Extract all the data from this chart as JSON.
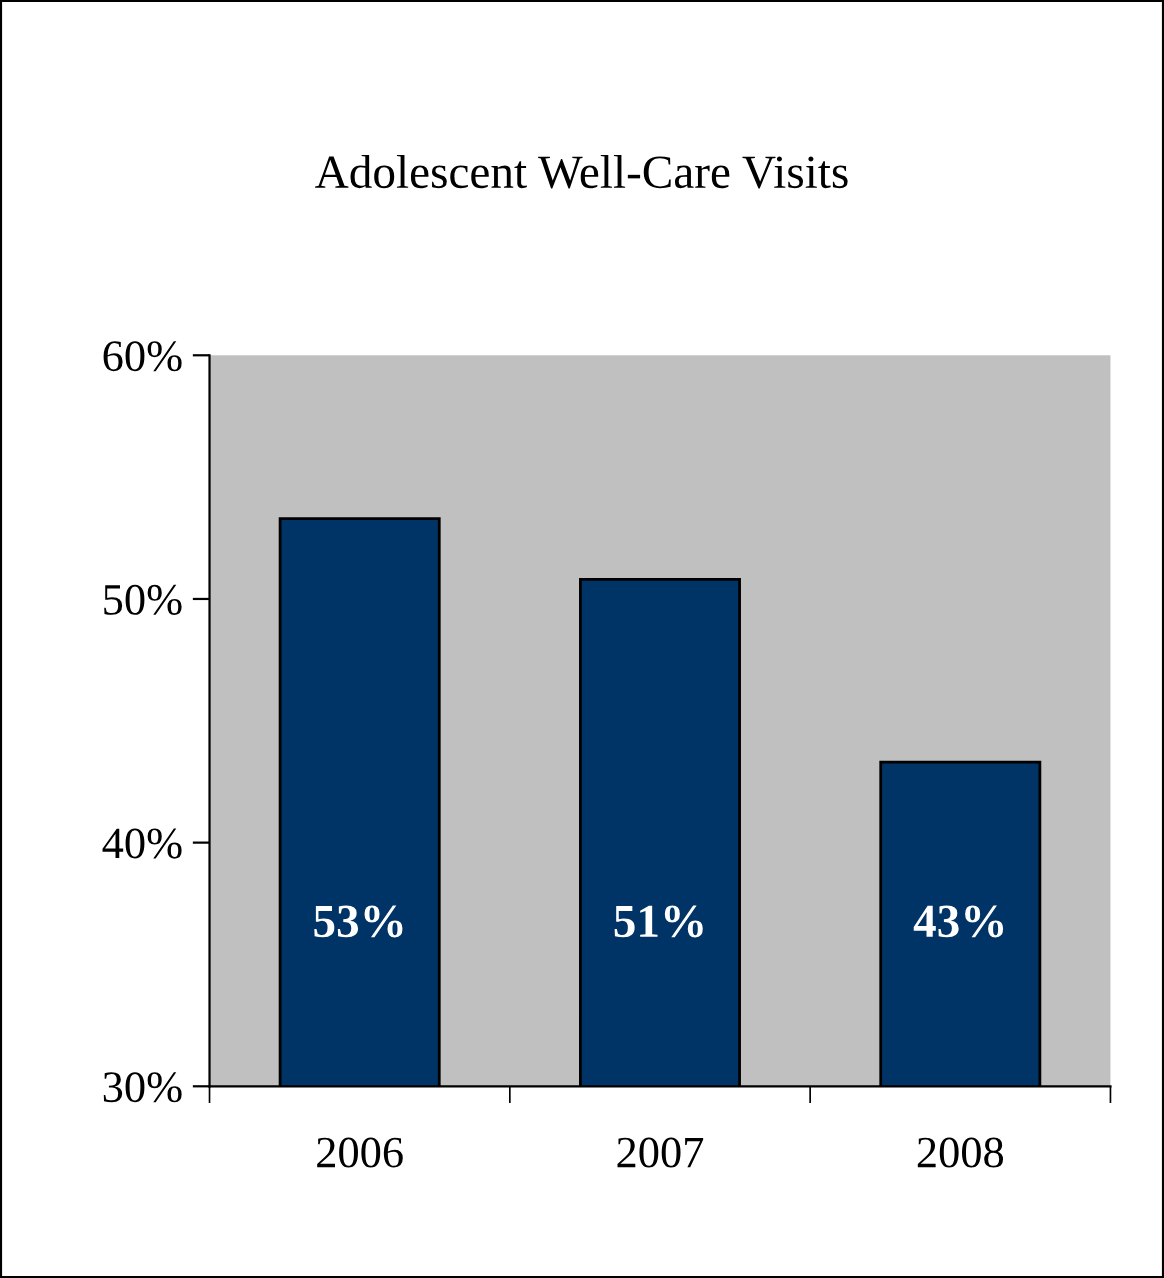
{
  "chart_data": {
    "type": "bar",
    "title": "Adolescent Well-Care Visits",
    "categories": [
      "2006",
      "2007",
      "2008"
    ],
    "values": [
      53.3,
      50.8,
      43.3
    ],
    "value_labels": [
      "53%",
      "51%",
      "43%"
    ],
    "color": "#003366",
    "ylim": [
      30,
      60
    ],
    "yticks": [
      {
        "value": 30,
        "label": "30%"
      },
      {
        "value": 40,
        "label": "40%"
      },
      {
        "value": 50,
        "label": "50%"
      },
      {
        "value": 60,
        "label": "60%"
      }
    ],
    "grid": false,
    "legend": false
  }
}
